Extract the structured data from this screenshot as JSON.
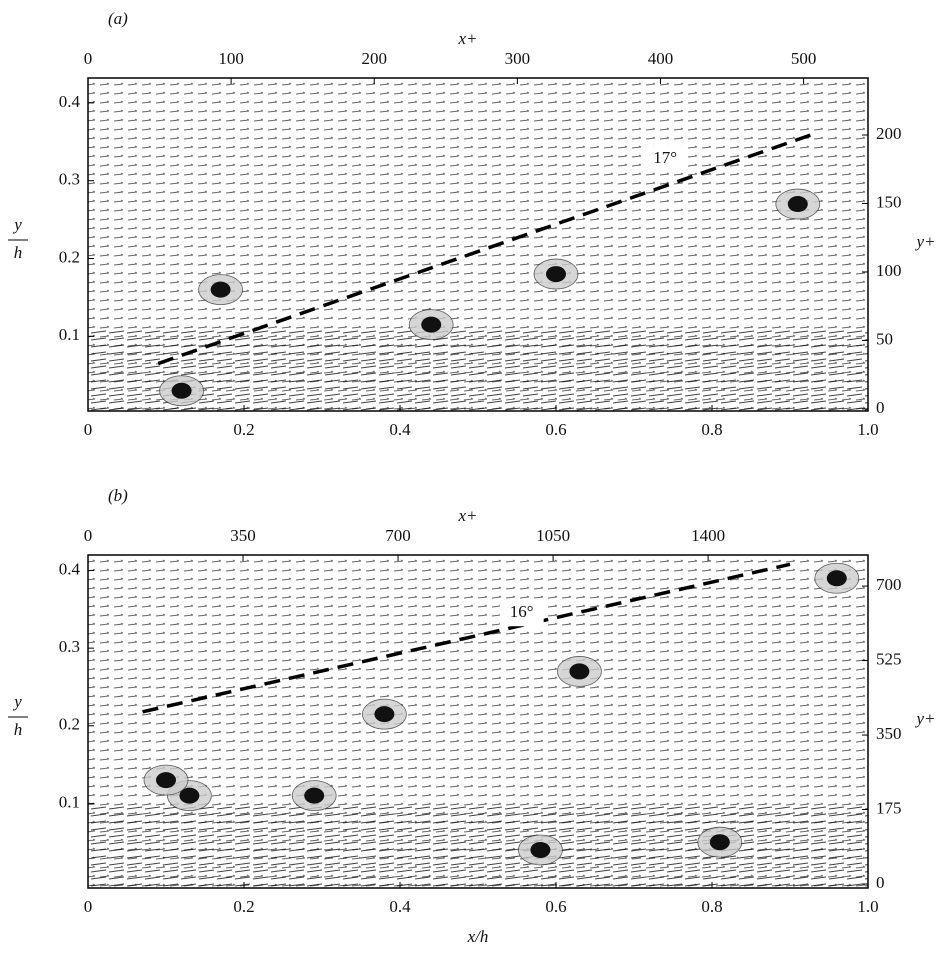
{
  "chart_data": [
    {
      "type": "quiver",
      "panel_label": "(a)",
      "xlabel": "x/h",
      "x2label": "x+",
      "ylabel": {
        "numerator": "y",
        "denominator": "h"
      },
      "y2label": "y+",
      "xlim": [
        0,
        1
      ],
      "xticks": [
        0,
        0.2,
        0.4,
        0.6,
        0.8,
        {
          "value": 1,
          "label": "1.0"
        }
      ],
      "x2lim": [
        0,
        545
      ],
      "x2ticks": [
        0,
        100,
        200,
        300,
        400,
        500
      ],
      "ylim": [
        0.004,
        0.432
      ],
      "yticks": [
        0.1,
        0.2,
        0.3,
        0.4
      ],
      "y2lim": [
        -1.5,
        241.6
      ],
      "y2ticks": [
        0,
        50,
        100,
        150,
        200
      ],
      "dashed_line": {
        "x": [
          0.09,
          0.93
        ],
        "y": [
          0.065,
          0.36
        ]
      },
      "annotation": {
        "text": "17°",
        "x": 0.74,
        "y": 0.328
      },
      "vortex_cores": {
        "x": [
          0.12,
          0.44,
          0.6,
          0.91,
          0.17
        ],
        "y": [
          0.03,
          0.115,
          0.18,
          0.27,
          0.16
        ]
      }
    },
    {
      "type": "quiver",
      "panel_label": "(b)",
      "xlabel": "x/h",
      "x2label": "x+",
      "ylabel": {
        "numerator": "y",
        "denominator": "h"
      },
      "y2label": "y+",
      "xlim": [
        0,
        1
      ],
      "xticks": [
        0,
        0.2,
        0.4,
        0.6,
        0.8,
        {
          "value": 1,
          "label": "1.0"
        }
      ],
      "x2lim": [
        0,
        1761
      ],
      "x2ticks": [
        0,
        350,
        700,
        1050,
        1400
      ],
      "ylim": [
        -0.009,
        0.42
      ],
      "yticks": [
        0.1,
        0.2,
        0.3,
        0.4
      ],
      "y2lim": [
        -9.4,
        773
      ],
      "y2ticks": [
        0,
        175,
        350,
        525,
        700
      ],
      "dashed_line": {
        "x": [
          0.07,
          0.9
        ],
        "y": [
          0.218,
          0.408
        ]
      },
      "annotation": {
        "text": "16°",
        "x": 0.556,
        "y": 0.345
      },
      "vortex_cores": {
        "x": [
          0.13,
          0.29,
          0.38,
          0.58,
          0.63,
          0.81,
          0.1,
          0.96
        ],
        "y": [
          0.11,
          0.11,
          0.215,
          0.04,
          0.27,
          0.05,
          0.13,
          0.39
        ]
      }
    }
  ]
}
